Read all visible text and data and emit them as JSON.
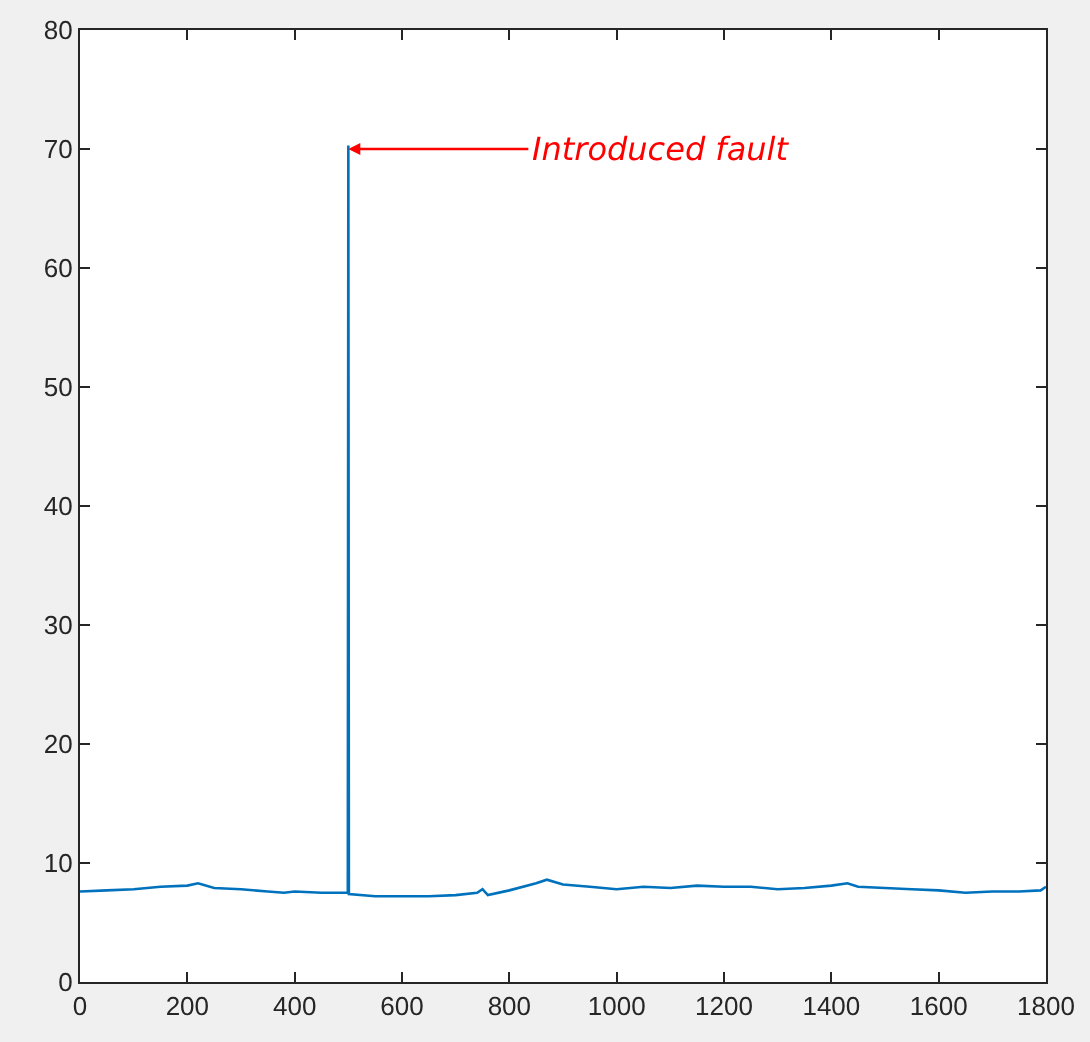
{
  "chart_data": {
    "type": "line",
    "xlim": [
      0,
      1800
    ],
    "ylim": [
      0,
      80
    ],
    "xticks": [
      0,
      200,
      400,
      600,
      800,
      1000,
      1200,
      1400,
      1600,
      1800
    ],
    "yticks": [
      0,
      10,
      20,
      30,
      40,
      50,
      60,
      70,
      80
    ],
    "grid": false,
    "marker": "none",
    "line_style": "solid",
    "annotations": [
      {
        "text": "Introduced fault",
        "x": 500,
        "y": 70
      }
    ],
    "series": [
      {
        "color": "#0072bd",
        "x": [
          0,
          50,
          100,
          150,
          200,
          220,
          250,
          300,
          350,
          380,
          400,
          450,
          499,
          500,
          501,
          550,
          600,
          650,
          700,
          740,
          750,
          760,
          800,
          850,
          870,
          900,
          950,
          1000,
          1050,
          1100,
          1150,
          1200,
          1250,
          1300,
          1350,
          1400,
          1430,
          1450,
          1500,
          1550,
          1600,
          1650,
          1700,
          1750,
          1790,
          1800
        ],
        "values": [
          7.6,
          7.7,
          7.8,
          8.0,
          8.1,
          8.3,
          7.9,
          7.8,
          7.6,
          7.5,
          7.6,
          7.5,
          7.5,
          70.3,
          7.4,
          7.2,
          7.2,
          7.2,
          7.3,
          7.5,
          7.8,
          7.3,
          7.7,
          8.3,
          8.6,
          8.2,
          8.0,
          7.8,
          8.0,
          7.9,
          8.1,
          8.0,
          8.0,
          7.8,
          7.9,
          8.1,
          8.3,
          8.0,
          7.9,
          7.8,
          7.7,
          7.5,
          7.6,
          7.6,
          7.7,
          8.0
        ]
      }
    ]
  }
}
